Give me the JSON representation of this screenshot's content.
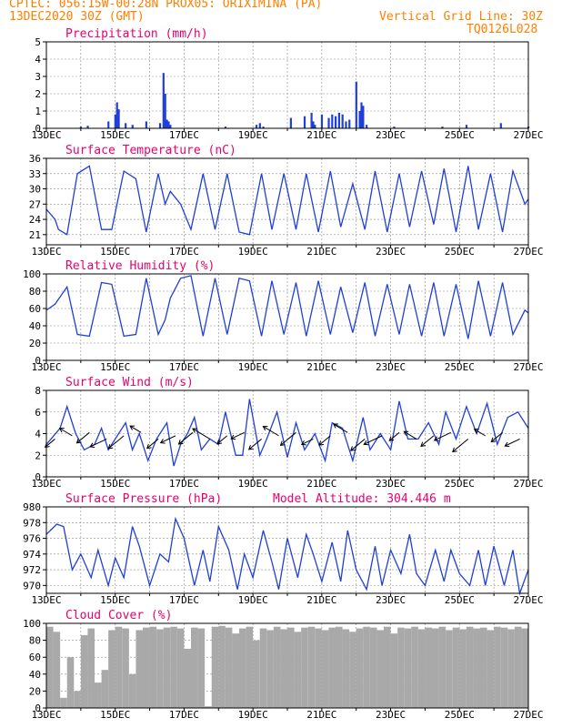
{
  "header": {
    "line1": "CPTEC:   056:15W-00:28N  PROX05: ORIXIMINA (PA)",
    "line2_left": "13DEC2020 30Z (GMT)",
    "line2_right": "Vertical Grid Line: 30Z",
    "line3_right": "TQ0126L028"
  },
  "colors": {
    "header": "#ff7f00",
    "title": "#e8006f",
    "series": "#1f3fd8",
    "bars": "#1f3fd8",
    "cloud": "#a9a9a9",
    "wind_arrow": "#000000"
  },
  "x_tick_labels": [
    "13DEC",
    "15DEC",
    "17DEC",
    "19DEC",
    "21DEC",
    "23DEC",
    "25DEC",
    "27DEC"
  ],
  "chart_data": [
    {
      "type": "bar",
      "title": "Precipitation (mm/h)",
      "ylim": [
        0,
        5
      ],
      "yticks": [
        "0",
        "1",
        "2",
        "3",
        "4",
        "5"
      ],
      "x_unit": "day offset from 13DEC",
      "x": [
        1.0,
        1.2,
        1.8,
        2.0,
        2.05,
        2.1,
        2.3,
        2.5,
        2.9,
        3.3,
        3.4,
        3.45,
        3.5,
        3.55,
        3.6,
        5.2,
        6.1,
        6.2,
        6.3,
        7.1,
        7.5,
        7.7,
        7.75,
        7.8,
        8.0,
        8.2,
        8.3,
        8.4,
        8.5,
        8.6,
        8.7,
        8.8,
        9.0,
        9.1,
        9.15,
        9.2,
        9.3,
        10.1,
        11.5,
        12.2,
        13.2,
        14.0
      ],
      "values": [
        0.1,
        0.15,
        0.4,
        0.8,
        1.5,
        1.1,
        0.3,
        0.2,
        0.4,
        0.3,
        3.2,
        2.0,
        0.5,
        0.4,
        0.2,
        0.1,
        0.2,
        0.3,
        0.1,
        0.6,
        0.7,
        0.9,
        0.4,
        0.2,
        0.8,
        0.6,
        0.8,
        0.7,
        0.9,
        0.8,
        0.4,
        0.5,
        2.7,
        1.0,
        1.5,
        1.3,
        0.2,
        0.1,
        0.1,
        0.2,
        0.3,
        0.1
      ]
    },
    {
      "type": "line",
      "title": "Surface Temperature (nC)",
      "ylim": [
        19,
        36
      ],
      "yticks": [
        "21",
        "24",
        "27",
        "30",
        "33",
        "36"
      ],
      "x_unit": "day offset from 13DEC",
      "x": [
        0,
        0.25,
        0.35,
        0.6,
        0.9,
        1.25,
        1.6,
        1.9,
        2.25,
        2.6,
        2.9,
        3.25,
        3.45,
        3.6,
        3.9,
        4.2,
        4.55,
        4.9,
        5.25,
        5.6,
        5.9,
        6.25,
        6.55,
        6.9,
        7.25,
        7.55,
        7.9,
        8.25,
        8.55,
        8.9,
        9.25,
        9.55,
        9.9,
        10.25,
        10.55,
        10.9,
        11.25,
        11.55,
        11.9,
        12.25,
        12.55,
        12.9,
        13.25,
        13.55,
        13.9,
        14.0
      ],
      "values": [
        26,
        24,
        22,
        21,
        33,
        34.5,
        22,
        22,
        33.5,
        32,
        21.5,
        33,
        27,
        29.5,
        27,
        22,
        33,
        22,
        33,
        21.5,
        21,
        33,
        22,
        33,
        22,
        33,
        21.5,
        33.5,
        22.5,
        31,
        22,
        33.5,
        21.5,
        33,
        22.5,
        33.5,
        23,
        34,
        21.5,
        34.5,
        22,
        33,
        21.5,
        33.5,
        27,
        28
      ]
    },
    {
      "type": "line",
      "title": "Relative Humidity (%)",
      "ylim": [
        0,
        100
      ],
      "yticks": [
        "0",
        "20",
        "40",
        "60",
        "80",
        "100"
      ],
      "x_unit": "day offset from 13DEC",
      "x": [
        0,
        0.25,
        0.6,
        0.9,
        1.25,
        1.6,
        1.9,
        2.25,
        2.6,
        2.9,
        3.25,
        3.45,
        3.6,
        3.9,
        4.2,
        4.55,
        4.9,
        5.25,
        5.6,
        5.9,
        6.25,
        6.55,
        6.9,
        7.25,
        7.55,
        7.9,
        8.25,
        8.55,
        8.9,
        9.25,
        9.55,
        9.9,
        10.25,
        10.55,
        10.9,
        11.25,
        11.55,
        11.9,
        12.25,
        12.55,
        12.9,
        13.25,
        13.55,
        13.9,
        14.0
      ],
      "values": [
        58,
        65,
        85,
        30,
        28,
        90,
        88,
        28,
        30,
        95,
        30,
        47,
        72,
        95,
        98,
        28,
        95,
        30,
        95,
        92,
        28,
        92,
        30,
        90,
        28,
        92,
        30,
        85,
        32,
        90,
        28,
        88,
        30,
        88,
        28,
        90,
        28,
        88,
        25,
        92,
        28,
        90,
        30,
        58,
        55
      ]
    },
    {
      "type": "line",
      "title": "Surface Wind (m/s)",
      "ylim": [
        0,
        8
      ],
      "yticks": [
        "0",
        "2",
        "4",
        "6",
        "8"
      ],
      "x_unit": "day offset from 13DEC",
      "x": [
        0,
        0.4,
        0.6,
        0.85,
        1.1,
        1.4,
        1.6,
        1.8,
        2.0,
        2.3,
        2.5,
        2.7,
        2.95,
        3.2,
        3.5,
        3.7,
        3.9,
        4.1,
        4.3,
        4.5,
        4.75,
        5.0,
        5.2,
        5.5,
        5.7,
        5.9,
        6.2,
        6.4,
        6.7,
        7.0,
        7.25,
        7.5,
        7.8,
        8.1,
        8.3,
        8.6,
        8.9,
        9.2,
        9.4,
        9.7,
        10.0,
        10.25,
        10.5,
        10.8,
        11.1,
        11.4,
        11.6,
        11.9,
        12.2,
        12.5,
        12.8,
        13.1,
        13.4,
        13.7,
        14.0
      ],
      "values": [
        3,
        4.5,
        6.5,
        4,
        2.5,
        3,
        4.5,
        2.5,
        3.5,
        5,
        2.5,
        4,
        1.5,
        3.5,
        5,
        1,
        3,
        4,
        5.5,
        2.5,
        3.5,
        3,
        6,
        2,
        2,
        7.2,
        2,
        3.5,
        6,
        1.8,
        5,
        2.5,
        4,
        1.5,
        5,
        4.5,
        1.5,
        5.5,
        2.5,
        4,
        2.5,
        7,
        3.5,
        3.5,
        5,
        3,
        6,
        3.5,
        6.5,
        4,
        6.8,
        3,
        5.5,
        6,
        4.5
      ]
    },
    {
      "type": "line",
      "title": "Surface Pressure (hPa)",
      "annotation": "Model Altitude: 304.446  m",
      "ylim": [
        969,
        980
      ],
      "yticks": [
        "970",
        "972",
        "974",
        "976",
        "978",
        "980"
      ],
      "x_unit": "day offset from 13DEC",
      "x": [
        0,
        0.3,
        0.5,
        0.75,
        1.0,
        1.3,
        1.5,
        1.8,
        2.0,
        2.25,
        2.5,
        2.7,
        3.0,
        3.3,
        3.55,
        3.75,
        4.0,
        4.3,
        4.55,
        4.75,
        5.0,
        5.3,
        5.55,
        5.75,
        6.0,
        6.3,
        6.55,
        6.75,
        7.0,
        7.3,
        7.55,
        7.75,
        8.0,
        8.3,
        8.55,
        8.75,
        9.0,
        9.3,
        9.55,
        9.75,
        10.0,
        10.3,
        10.55,
        10.75,
        11.0,
        11.3,
        11.55,
        11.75,
        12.0,
        12.3,
        12.55,
        12.75,
        13.0,
        13.3,
        13.55,
        13.75,
        14.0
      ],
      "values": [
        976.5,
        977.8,
        977.5,
        972,
        974,
        971,
        974.5,
        970,
        973.5,
        971,
        977.5,
        975,
        970,
        974,
        973,
        978.5,
        976,
        970,
        974.5,
        970.5,
        977.5,
        974.5,
        969.5,
        974,
        971,
        977,
        973,
        969.5,
        976,
        971,
        976.5,
        974,
        970.5,
        975.5,
        970.5,
        977,
        972,
        969.5,
        975,
        970,
        974.5,
        971.5,
        976.5,
        971.5,
        970,
        974.5,
        970.5,
        974.5,
        971.5,
        970,
        974.5,
        970,
        975,
        970,
        974.5,
        969,
        972
      ]
    },
    {
      "type": "bar",
      "title": "Cloud Cover (%)",
      "ylim": [
        0,
        100
      ],
      "yticks": [
        "0",
        "20",
        "40",
        "60",
        "80",
        "100"
      ],
      "x_unit": "day offset from 13DEC",
      "x": [
        0,
        0.2,
        0.4,
        0.6,
        0.8,
        1.0,
        1.2,
        1.4,
        1.6,
        1.8,
        2.0,
        2.2,
        2.4,
        2.6,
        2.8,
        3.0,
        3.2,
        3.4,
        3.6,
        3.8,
        4.0,
        4.2,
        4.4,
        4.6,
        4.8,
        5.0,
        5.2,
        5.4,
        5.6,
        5.8,
        6.0,
        6.2,
        6.4,
        6.6,
        6.8,
        7.0,
        7.2,
        7.4,
        7.6,
        7.8,
        8.0,
        8.2,
        8.4,
        8.6,
        8.8,
        9.0,
        9.2,
        9.4,
        9.6,
        9.8,
        10.0,
        10.2,
        10.4,
        10.6,
        10.8,
        11.0,
        11.2,
        11.4,
        11.6,
        11.8,
        12.0,
        12.2,
        12.4,
        12.6,
        12.8,
        13.0,
        13.2,
        13.4,
        13.6,
        13.8,
        14.0
      ],
      "values": [
        96,
        90,
        12,
        60,
        20,
        86,
        94,
        30,
        45,
        92,
        96,
        94,
        40,
        92,
        95,
        96,
        93,
        95,
        96,
        94,
        70,
        95,
        94,
        2,
        96,
        97,
        95,
        88,
        94,
        96,
        80,
        94,
        92,
        96,
        93,
        95,
        90,
        95,
        96,
        94,
        92,
        95,
        96,
        93,
        90,
        94,
        96,
        95,
        92,
        96,
        88,
        95,
        94,
        96,
        93,
        95,
        94,
        96,
        92,
        95,
        93,
        96,
        94,
        95,
        92,
        96,
        95,
        93,
        96,
        94,
        95
      ]
    }
  ]
}
